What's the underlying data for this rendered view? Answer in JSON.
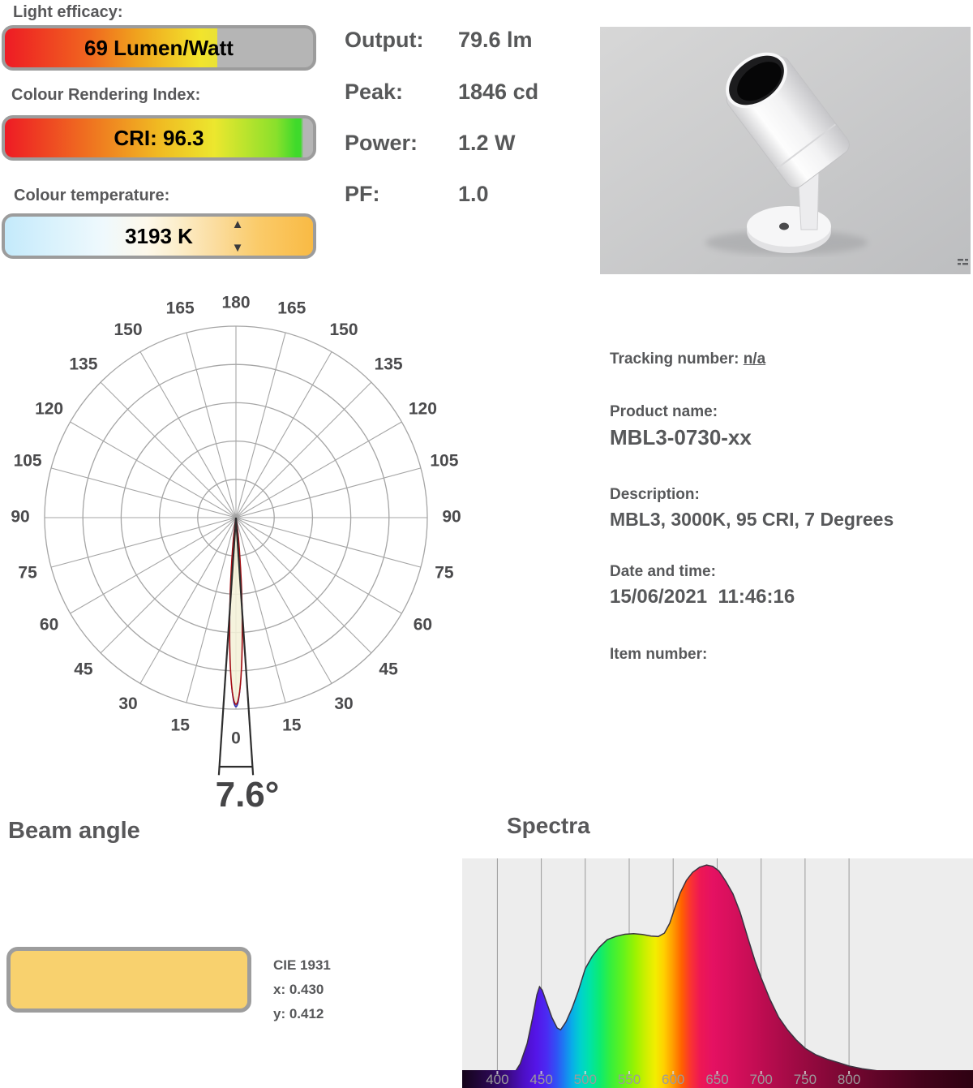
{
  "metrics": {
    "light_efficacy": {
      "label": "Light efficacy:",
      "value": "69 Lumen/Watt",
      "fill_percent": 69
    },
    "cri": {
      "label": "Colour Rendering Index:",
      "value": "CRI: 96.3",
      "fill_percent": 96.3
    },
    "colour_temperature": {
      "label": "Colour temperature:",
      "value": "3193 K",
      "up_icon": "▲",
      "down_icon": "▼"
    }
  },
  "output_panel": {
    "rows": [
      {
        "label": "Output:",
        "value": "79.6 lm"
      },
      {
        "label": "Peak:",
        "value": "1846 cd"
      },
      {
        "label": "Power:",
        "value": "1.2 W"
      },
      {
        "label": "PF:",
        "value": "1.0"
      }
    ]
  },
  "product_info": {
    "tracking_label": "Tracking number:",
    "tracking_value": "n/a",
    "product_name_label": "Product name:",
    "product_name": "MBL3-0730-xx",
    "description_label": "Description:",
    "description": "MBL3, 3000K, 95 CRI, 7 Degrees",
    "datetime_label": "Date and time:",
    "datetime": "15/06/2021  11:46:16",
    "item_label": "Item number:"
  },
  "beam": {
    "heading": "Beam angle",
    "angle_label": "7.6°"
  },
  "cie": {
    "title": "CIE 1931",
    "x_line": "x: 0.430",
    "y_line": "y: 0.412",
    "swatch_color": "#f8d16e"
  },
  "spectra": {
    "heading": "Spectra"
  },
  "chart_data": [
    {
      "type": "line",
      "coordinate": "polar",
      "title": "Beam angle polar intensity diagram",
      "rings": 5,
      "spoke_step_deg": 15,
      "angle_labels": [
        0,
        15,
        30,
        45,
        60,
        75,
        90,
        105,
        120,
        135,
        150,
        165,
        180
      ],
      "beam_angle_deg": 7.6,
      "peak_intensity_cd": 1846,
      "lobe": {
        "fwhm_deg": 7.6,
        "length_fraction": 0.975,
        "fill": "#f4f1d8",
        "outline_red": "#a50d12",
        "outline_blue": "#2a2ab0"
      },
      "wedge_half_angle_deg": 3.8,
      "grid_color": "#a5a5a5",
      "label_color": "#4b4b4d"
    },
    {
      "type": "area",
      "title": "Spectra",
      "x_ticks_nm": [
        400,
        450,
        500,
        550,
        600,
        650,
        700,
        750,
        800
      ],
      "x_range_nm": [
        360,
        941
      ],
      "background": "#ededed",
      "gridline_color": "#9a9a9a",
      "tick_label_color": "#9b9b9b",
      "curve_outline": "#3a3340",
      "points_nm_intensity": [
        [
          360,
          0.004
        ],
        [
          385,
          0.008
        ],
        [
          400,
          0.018
        ],
        [
          410,
          0.028
        ],
        [
          418,
          0.05
        ],
        [
          426,
          0.1
        ],
        [
          434,
          0.19
        ],
        [
          440,
          0.3
        ],
        [
          445,
          0.405
        ],
        [
          448,
          0.44
        ],
        [
          451,
          0.425
        ],
        [
          456,
          0.37
        ],
        [
          462,
          0.305
        ],
        [
          468,
          0.258
        ],
        [
          472,
          0.25
        ],
        [
          478,
          0.285
        ],
        [
          485,
          0.345
        ],
        [
          492,
          0.42
        ],
        [
          500,
          0.52
        ],
        [
          508,
          0.575
        ],
        [
          516,
          0.615
        ],
        [
          525,
          0.648
        ],
        [
          535,
          0.663
        ],
        [
          545,
          0.672
        ],
        [
          555,
          0.675
        ],
        [
          565,
          0.671
        ],
        [
          575,
          0.664
        ],
        [
          583,
          0.662
        ],
        [
          590,
          0.677
        ],
        [
          596,
          0.72
        ],
        [
          602,
          0.79
        ],
        [
          608,
          0.855
        ],
        [
          615,
          0.91
        ],
        [
          622,
          0.945
        ],
        [
          630,
          0.968
        ],
        [
          638,
          0.978
        ],
        [
          645,
          0.972
        ],
        [
          652,
          0.952
        ],
        [
          660,
          0.905
        ],
        [
          668,
          0.85
        ],
        [
          676,
          0.77
        ],
        [
          685,
          0.655
        ],
        [
          693,
          0.555
        ],
        [
          700,
          0.48
        ],
        [
          710,
          0.385
        ],
        [
          720,
          0.305
        ],
        [
          730,
          0.25
        ],
        [
          740,
          0.205
        ],
        [
          750,
          0.168
        ],
        [
          762,
          0.14
        ],
        [
          775,
          0.12
        ],
        [
          788,
          0.105
        ],
        [
          800,
          0.09
        ],
        [
          815,
          0.078
        ],
        [
          835,
          0.067
        ],
        [
          860,
          0.058
        ],
        [
          890,
          0.052
        ],
        [
          915,
          0.049
        ],
        [
          941,
          0.047
        ]
      ],
      "gradient_stops": [
        [
          0,
          "#140419"
        ],
        [
          0.055,
          "#2a0850"
        ],
        [
          0.09,
          "#3c0a85"
        ],
        [
          0.12,
          "#4c0fc4"
        ],
        [
          0.145,
          "#5415e8"
        ],
        [
          0.165,
          "#4b2af2"
        ],
        [
          0.185,
          "#3053f5"
        ],
        [
          0.2,
          "#1b7ef2"
        ],
        [
          0.215,
          "#09ade8"
        ],
        [
          0.232,
          "#00d2cd"
        ],
        [
          0.25,
          "#00e3a6"
        ],
        [
          0.27,
          "#0deb70"
        ],
        [
          0.29,
          "#35ef3d"
        ],
        [
          0.315,
          "#63f21c"
        ],
        [
          0.34,
          "#9ef200"
        ],
        [
          0.36,
          "#cfef00"
        ],
        [
          0.378,
          "#f2ee00"
        ],
        [
          0.395,
          "#ffd000"
        ],
        [
          0.413,
          "#ff9b00"
        ],
        [
          0.43,
          "#ff6000"
        ],
        [
          0.447,
          "#fa3431"
        ],
        [
          0.465,
          "#ee1853"
        ],
        [
          0.49,
          "#e51162"
        ],
        [
          0.53,
          "#d60f5c"
        ],
        [
          0.575,
          "#c30d53"
        ],
        [
          0.63,
          "#a90b48"
        ],
        [
          0.69,
          "#90093d"
        ],
        [
          0.75,
          "#790732"
        ],
        [
          0.82,
          "#5e0527"
        ],
        [
          0.9,
          "#44031b"
        ],
        [
          1,
          "#2e0212"
        ]
      ]
    }
  ]
}
